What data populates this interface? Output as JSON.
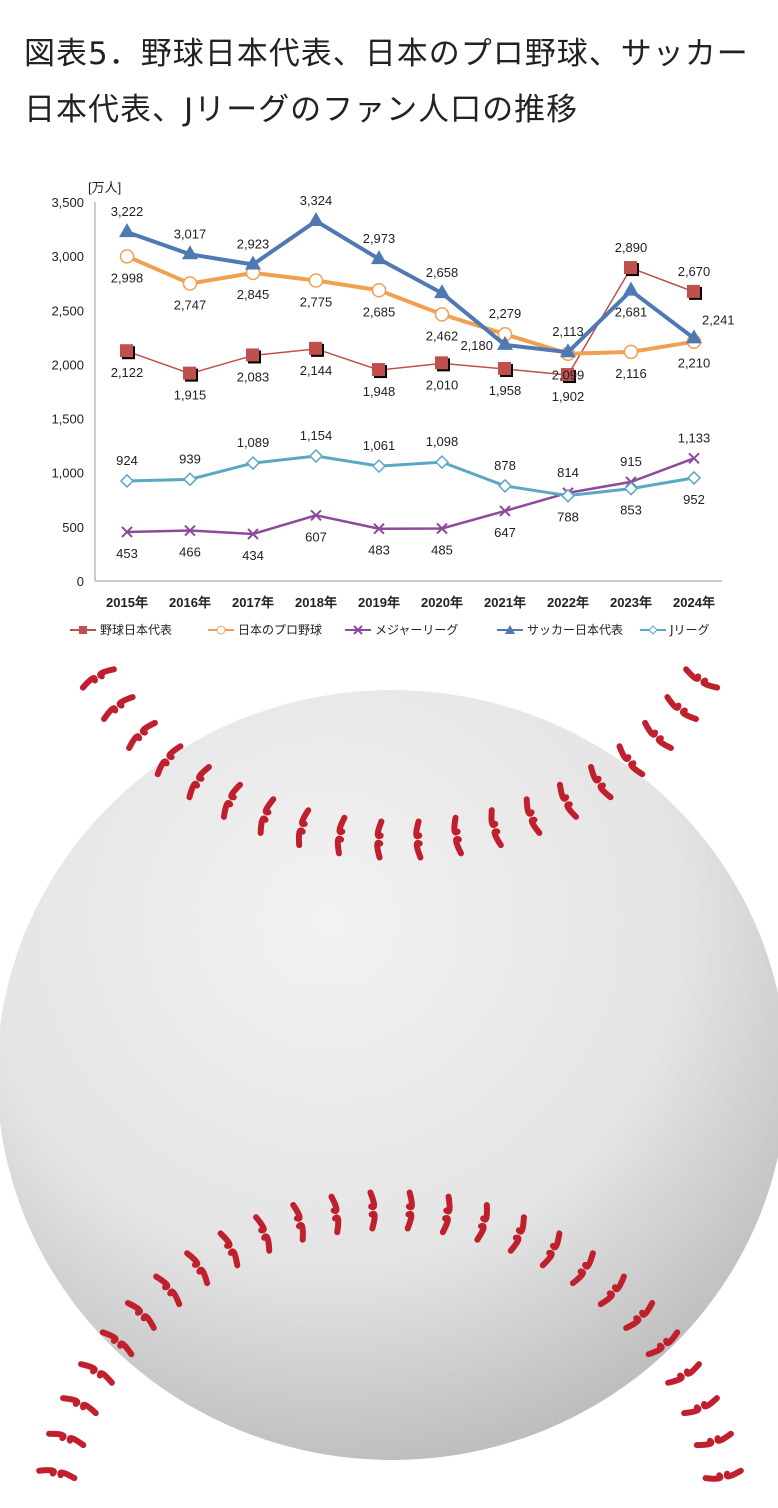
{
  "title": "図表5．野球日本代表、日本のプロ野球、サッカー日本代表、Jリーグのファン人口の推移",
  "chart_data": {
    "type": "line",
    "title": "図表5．野球日本代表、日本のプロ野球、サッカー日本代表、Jリーグのファン人口の推移",
    "ylabel": "[万人]",
    "xlabel": "",
    "ylim": [
      0,
      3500
    ],
    "yticks": [
      0,
      500,
      1000,
      1500,
      2000,
      2500,
      3000,
      3500
    ],
    "ytick_labels": [
      "0",
      "500",
      "1,000",
      "1,500",
      "2,000",
      "2,500",
      "3,000",
      "3,500"
    ],
    "categories": [
      "2015年",
      "2016年",
      "2017年",
      "2018年",
      "2019年",
      "2020年",
      "2021年",
      "2022年",
      "2023年",
      "2024年"
    ],
    "legend_position": "bottom",
    "series": [
      {
        "name": "野球日本代表",
        "color": "#c0504d",
        "marker": "square",
        "values": [
          2122,
          1915,
          2083,
          2144,
          1948,
          2010,
          1958,
          1902,
          2890,
          2670
        ],
        "labels": [
          "2,122",
          "1,915",
          "2,083",
          "2,144",
          "1,948",
          "2,010",
          "1,958",
          "1,902",
          "2,890",
          "2,670"
        ]
      },
      {
        "name": "日本のプロ野球",
        "color": "#f0a050",
        "marker": "circle-open",
        "values": [
          2998,
          2747,
          2845,
          2775,
          2685,
          2462,
          2279,
          2099,
          2116,
          2210
        ],
        "labels": [
          "2,998",
          "2,747",
          "2,845",
          "2,775",
          "2,685",
          "2,462",
          "2,279",
          "2,099",
          "2,116",
          "2,210"
        ]
      },
      {
        "name": "メジャーリーグ",
        "color": "#8e4a9a",
        "marker": "x",
        "values": [
          453,
          466,
          434,
          607,
          483,
          485,
          647,
          814,
          915,
          1133
        ],
        "labels": [
          "453",
          "466",
          "434",
          "607",
          "483",
          "485",
          "647",
          "814",
          "915",
          "1,133"
        ]
      },
      {
        "name": "サッカー日本代表",
        "color": "#4f79b5",
        "marker": "triangle",
        "values": [
          3222,
          3017,
          2923,
          3324,
          2973,
          2658,
          2180,
          2113,
          2681,
          2241
        ],
        "labels": [
          "3,222",
          "3,017",
          "2,923",
          "3,324",
          "2,973",
          "2,658",
          "2,180",
          "2,113",
          "2,681",
          "2,241"
        ]
      },
      {
        "name": "Jリーグ",
        "color": "#5aa8c4",
        "marker": "diamond-open",
        "values": [
          924,
          939,
          1089,
          1154,
          1061,
          1098,
          878,
          788,
          853,
          952
        ],
        "labels": [
          "924",
          "939",
          "1,089",
          "1,154",
          "1,061",
          "1,098",
          "878",
          "788",
          "853",
          "952"
        ]
      }
    ]
  }
}
